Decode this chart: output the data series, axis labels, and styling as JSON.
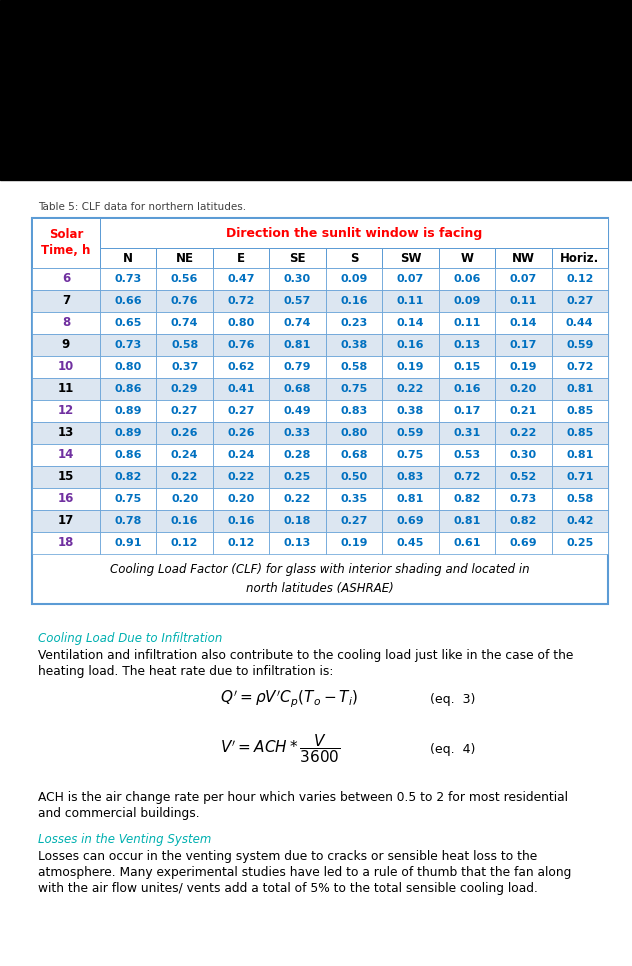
{
  "table_title": "Table 5: CLF data for northern latitudes.",
  "table_header_left": "Solar\nTime, h",
  "table_header_direction": "Direction the sunlit window is facing",
  "table_columns": [
    "N",
    "NE",
    "E",
    "SE",
    "S",
    "SW",
    "W",
    "NW",
    "Horiz."
  ],
  "table_rows": [
    [
      6,
      0.73,
      0.56,
      0.47,
      0.3,
      0.09,
      0.07,
      0.06,
      0.07,
      0.12
    ],
    [
      7,
      0.66,
      0.76,
      0.72,
      0.57,
      0.16,
      0.11,
      0.09,
      0.11,
      0.27
    ],
    [
      8,
      0.65,
      0.74,
      0.8,
      0.74,
      0.23,
      0.14,
      0.11,
      0.14,
      0.44
    ],
    [
      9,
      0.73,
      0.58,
      0.76,
      0.81,
      0.38,
      0.16,
      0.13,
      0.17,
      0.59
    ],
    [
      10,
      0.8,
      0.37,
      0.62,
      0.79,
      0.58,
      0.19,
      0.15,
      0.19,
      0.72
    ],
    [
      11,
      0.86,
      0.29,
      0.41,
      0.68,
      0.75,
      0.22,
      0.16,
      0.2,
      0.81
    ],
    [
      12,
      0.89,
      0.27,
      0.27,
      0.49,
      0.83,
      0.38,
      0.17,
      0.21,
      0.85
    ],
    [
      13,
      0.89,
      0.26,
      0.26,
      0.33,
      0.8,
      0.59,
      0.31,
      0.22,
      0.85
    ],
    [
      14,
      0.86,
      0.24,
      0.24,
      0.28,
      0.68,
      0.75,
      0.53,
      0.3,
      0.81
    ],
    [
      15,
      0.82,
      0.22,
      0.22,
      0.25,
      0.5,
      0.83,
      0.72,
      0.52,
      0.71
    ],
    [
      16,
      0.75,
      0.2,
      0.2,
      0.22,
      0.35,
      0.81,
      0.82,
      0.73,
      0.58
    ],
    [
      17,
      0.78,
      0.16,
      0.16,
      0.18,
      0.27,
      0.69,
      0.81,
      0.82,
      0.42
    ],
    [
      18,
      0.91,
      0.12,
      0.12,
      0.13,
      0.19,
      0.45,
      0.61,
      0.69,
      0.25
    ]
  ],
  "table_caption": "Cooling Load Factor (CLF) for glass with interior shading and located in\nnorth latitudes (ASHRAE)",
  "section_title": "Cooling Load Due to Infiltration",
  "section_body1": "Ventilation and infiltration also contribute to the cooling load just like in the case of the heating load. The heat rate due to infiltration is:",
  "ach_text1": "ACH is the air change rate per hour which varies between 0.5 to 2 for most residential and commercial buildings.",
  "section2_title": "Losses in the Venting System",
  "section2_body": "Losses can occur in the venting system due to cracks or sensible heat loss to the atmosphere. Many experimental studies have led to a rule of thumb that the fan along with the air flow unites/ vents add a total of 5% to the total sensible cooling load.",
  "bg_color": "#ffffff",
  "table_border_color": "#5B9BD5",
  "title_color": "#404040",
  "direction_header_color": "#FF0000",
  "col_header_color": "#000000",
  "row_num_color_odd": "#7030A0",
  "row_num_color_even": "#000000",
  "data_color": "#0070C0",
  "section_title_color": "#00B0B0",
  "caption_color": "#000000",
  "odd_row_bg": "#FFFFFF",
  "even_row_bg": "#DCE6F1",
  "black_bar_height": 180
}
